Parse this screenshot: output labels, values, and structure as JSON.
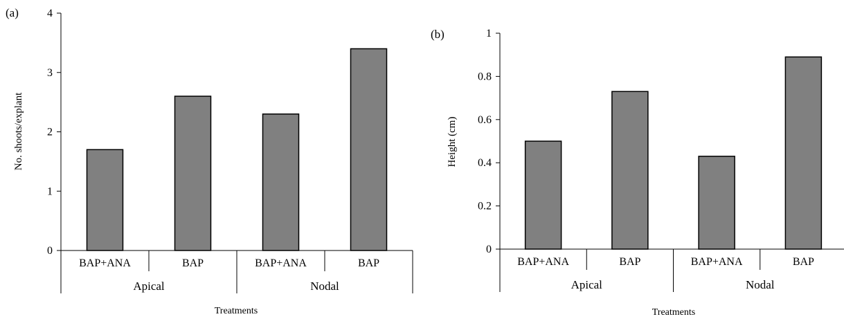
{
  "chart_data": [
    {
      "type": "bar",
      "panel_label": "(a)",
      "ylabel": "No. shoots/explant",
      "xlabel": "Treatments",
      "ylim": [
        0,
        4
      ],
      "yticks": [
        "0",
        "1",
        "2",
        "3",
        "4"
      ],
      "categories": [
        "BAP+ANA",
        "BAP",
        "BAP+ANA",
        "BAP"
      ],
      "groups": [
        "Apical",
        "Nodal"
      ],
      "values": [
        1.7,
        2.6,
        2.3,
        3.4
      ],
      "bar_color": "#808080",
      "grid": false
    },
    {
      "type": "bar",
      "panel_label": "(b)",
      "ylabel": "Height (cm)",
      "xlabel": "Treatments",
      "ylim": [
        0,
        1
      ],
      "yticks": [
        "0",
        "0.2",
        "0.4",
        "0.6",
        "0.8",
        "1"
      ],
      "categories": [
        "BAP+ANA",
        "BAP",
        "BAP+ANA",
        "BAP"
      ],
      "groups": [
        "Apical",
        "Nodal"
      ],
      "values": [
        0.5,
        0.73,
        0.43,
        0.89
      ],
      "bar_color": "#808080",
      "grid": false
    }
  ]
}
